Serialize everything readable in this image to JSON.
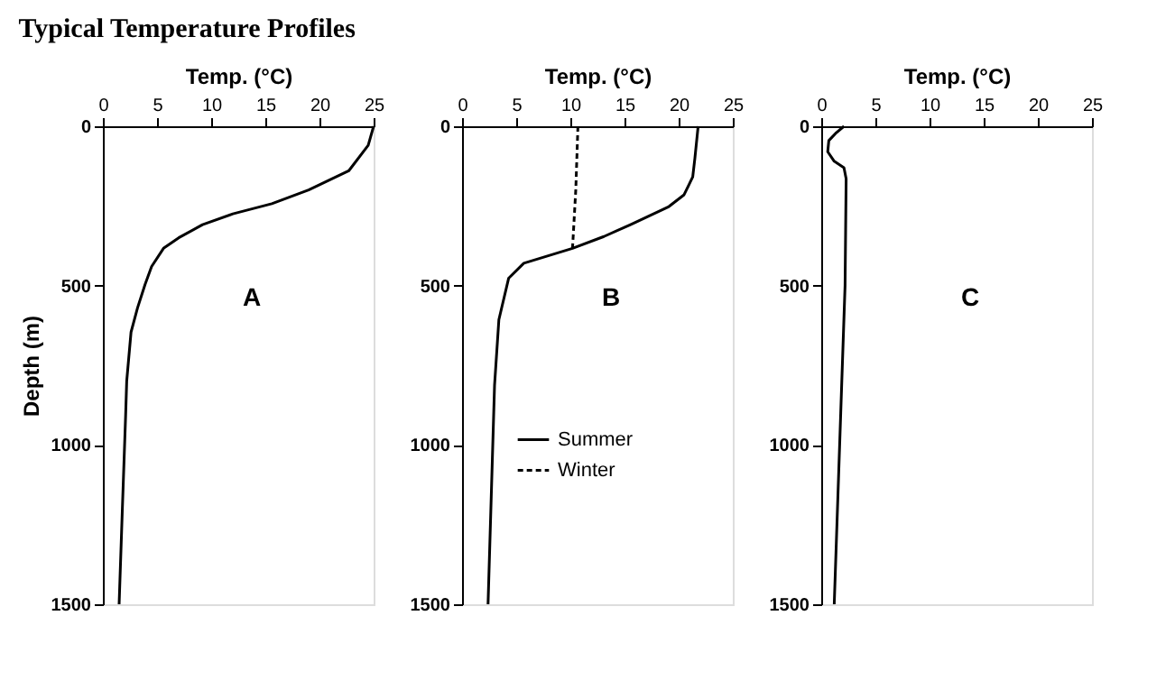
{
  "chart_data": [
    {
      "type": "line",
      "title": "Typical Temperature Profiles",
      "xlabel": "Temp. (°C)",
      "ylabel": "Depth (m)",
      "xlim": [
        0,
        25
      ],
      "xticks": [
        0,
        5,
        10,
        15,
        20,
        25
      ],
      "ylim": [
        1500,
        0
      ],
      "yticks": [
        0,
        500,
        1000,
        1500
      ],
      "grid": false,
      "annotations": [
        "A"
      ],
      "series": [
        {
          "color": "#000000",
          "line_style": "solid",
          "x": [
            25,
            24.5,
            22.7,
            19,
            15.6,
            12,
            9.2,
            7,
            5.6,
            4.5,
            3.9,
            3.2,
            2.6,
            2.2,
            2.1,
            1.8,
            1.5
          ],
          "values": [
            0,
            60,
            140,
            200,
            243,
            275,
            309,
            350,
            383,
            440,
            496,
            570,
            646,
            800,
            908,
            1200,
            1500
          ]
        }
      ]
    },
    {
      "type": "line",
      "xlabel": "Temp. (°C)",
      "xlim": [
        0,
        25
      ],
      "xticks": [
        0,
        5,
        10,
        15,
        20,
        25
      ],
      "ylim": [
        1500,
        0
      ],
      "yticks": [
        0,
        500,
        1000,
        1500
      ],
      "grid": false,
      "annotations": [
        "B"
      ],
      "legend": "bottom",
      "series": [
        {
          "name": "Summer",
          "color": "#000000",
          "line_style": "solid",
          "x": [
            21.8,
            21.5,
            21.3,
            20.5,
            19.1,
            15.6,
            13.1,
            10.2,
            5.7,
            4.3,
            3.4,
            3.0,
            2.4
          ],
          "values": [
            0,
            100,
            159,
            215,
            252,
            308,
            346,
            383,
            430,
            477,
            607,
            813,
            1500
          ]
        },
        {
          "name": "Winter",
          "color": "#000000",
          "line_style": "dashed",
          "x": [
            10.7,
            10.5,
            10.2
          ],
          "values": [
            0,
            200,
            383
          ]
        }
      ]
    },
    {
      "type": "line",
      "xlabel": "Temp. (°C)",
      "xlim": [
        0,
        25
      ],
      "xticks": [
        0,
        5,
        10,
        15,
        20,
        25
      ],
      "ylim": [
        1500,
        0
      ],
      "yticks": [
        0,
        500,
        1000,
        1500
      ],
      "grid": false,
      "annotations": [
        "C"
      ],
      "series": [
        {
          "color": "#000000",
          "line_style": "solid",
          "x": [
            2.1,
            1.4,
            0.7,
            0.6,
            1.2,
            2.1,
            2.3,
            2.2,
            1.8,
            1.2
          ],
          "values": [
            0,
            20,
            45,
            80,
            110,
            130,
            165,
            500,
            900,
            1500
          ]
        }
      ]
    }
  ]
}
